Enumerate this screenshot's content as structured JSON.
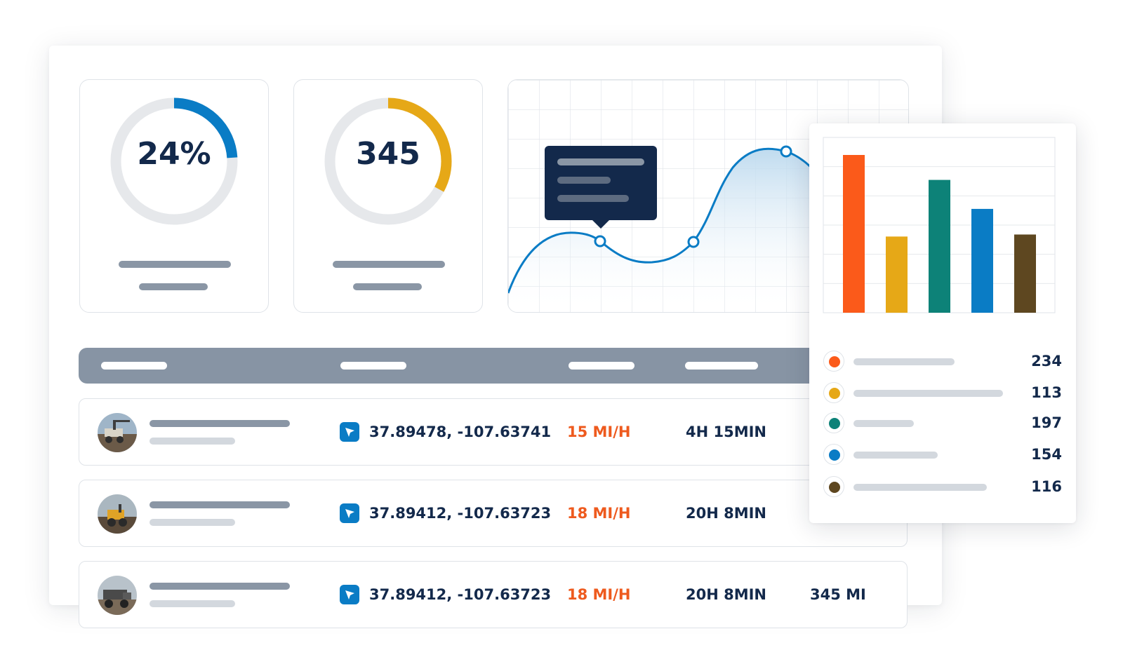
{
  "kpis": [
    {
      "value": "24%",
      "progress": 0.24,
      "color": "#0a7cc5"
    },
    {
      "value": "345",
      "progress": 0.33,
      "color": "#e6a817"
    }
  ],
  "colors": {
    "primary_dark": "#13294b",
    "accent_orange": "#ee5a1e",
    "header_gray": "#8794a4",
    "track_gray": "#e6e8eb",
    "coord_blue": "#0a7cc5"
  },
  "line_chart": {
    "line_color": "#0a7cc5",
    "tooltip_color": "#13294b"
  },
  "table": {
    "rows": [
      {
        "coords": "37.89478, -107.63741",
        "speed": "15 MI/H",
        "duration": "4H 15MIN",
        "distance": "",
        "avatar": "crane-vehicle"
      },
      {
        "coords": "37.89412, -107.63723",
        "speed": "18 MI/H",
        "duration": "20H 8MIN",
        "distance": "",
        "avatar": "excavator-vehicle"
      },
      {
        "coords": "37.89412, -107.63723",
        "speed": "18 MI/H",
        "duration": "20H 8MIN",
        "distance": "345 MI",
        "avatar": "dump-truck-vehicle"
      }
    ]
  },
  "chart_data": {
    "type": "bar",
    "series": [
      {
        "values": [
          234,
          113,
          197,
          154,
          116
        ]
      }
    ],
    "colors": [
      "#fb5a1a",
      "#e6a817",
      "#0d8278",
      "#0a7cc5",
      "#5e4720"
    ],
    "legend": [
      {
        "value": "234",
        "color": "#fb5a1a"
      },
      {
        "value": "113",
        "color": "#e6a817"
      },
      {
        "value": "197",
        "color": "#0d8278"
      },
      {
        "value": "154",
        "color": "#0a7cc5"
      },
      {
        "value": "116",
        "color": "#5e4720"
      }
    ],
    "ylim": [
      0,
      260
    ],
    "grid": true,
    "legend_placement": "bottom"
  }
}
